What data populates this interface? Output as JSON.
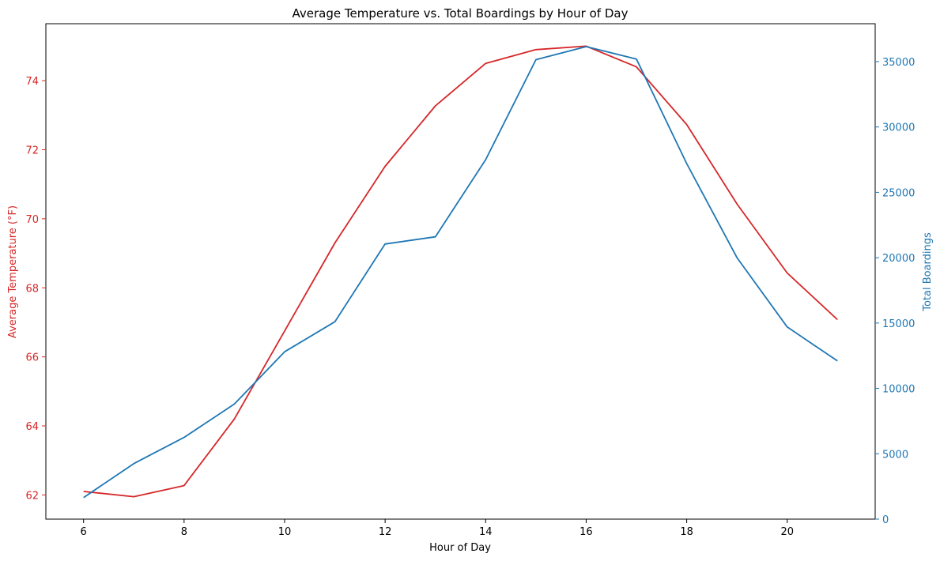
{
  "chart_data": {
    "type": "line",
    "title": "Average Temperature vs. Total Boardings by Hour of Day",
    "xlabel": "Hour of Day",
    "x": [
      6,
      7,
      8,
      9,
      10,
      11,
      12,
      13,
      14,
      15,
      16,
      17,
      18,
      19,
      20,
      21
    ],
    "xlim": [
      5.25,
      21.75
    ],
    "xticks": [
      6,
      8,
      10,
      12,
      14,
      16,
      18,
      20
    ],
    "grid": false,
    "series": [
      {
        "axis": "left",
        "color": "#d62728",
        "values": [
          62.1,
          61.95,
          62.27,
          64.2,
          66.75,
          69.3,
          71.52,
          73.27,
          74.5,
          74.9,
          75.0,
          74.4,
          72.73,
          70.43,
          68.43,
          67.08
        ]
      },
      {
        "axis": "right",
        "color": "#1f77b4",
        "values": [
          1650,
          4250,
          6250,
          8800,
          12800,
          15100,
          21050,
          21600,
          27500,
          35150,
          36150,
          35200,
          27200,
          20000,
          14700,
          12100
        ]
      }
    ],
    "y_left": {
      "label": "Average Temperature (°F)",
      "color": "#d62728",
      "ylim": [
        61.3,
        75.65
      ],
      "ticks": [
        62,
        64,
        66,
        68,
        70,
        72,
        74
      ]
    },
    "y_right": {
      "label": "Total Boardings",
      "color": "#1f77b4",
      "ylim": [
        0,
        37900
      ],
      "ticks": [
        0,
        5000,
        10000,
        15000,
        20000,
        25000,
        30000,
        35000
      ]
    }
  }
}
